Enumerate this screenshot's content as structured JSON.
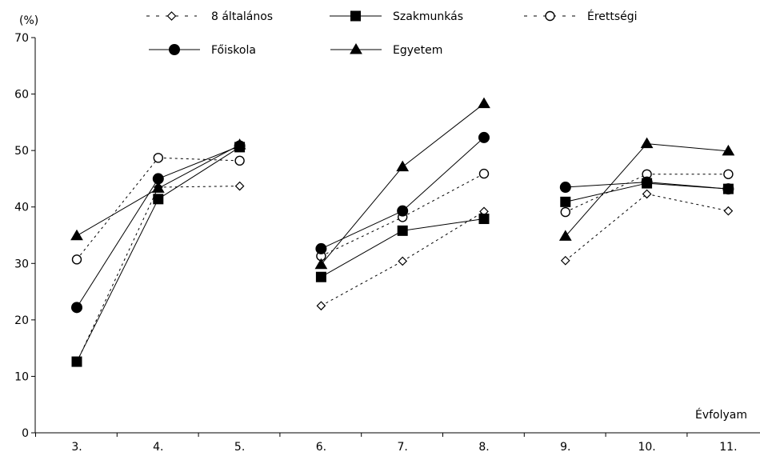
{
  "chart_data": {
    "type": "line",
    "title": "",
    "ylabel": "(%)",
    "xlabel": "Évfolyam",
    "ylim": [
      0,
      70
    ],
    "yticks": [
      0,
      10,
      20,
      30,
      40,
      50,
      60,
      70
    ],
    "categories": [
      "3.",
      "4.",
      "5.",
      "6.",
      "7.",
      "8.",
      "9.",
      "10.",
      "11."
    ],
    "groups": [
      [
        0,
        1,
        2
      ],
      [
        3,
        4,
        5
      ],
      [
        6,
        7,
        8
      ]
    ],
    "grid": false,
    "legend_position": "top",
    "series": [
      {
        "name": "8 általános",
        "marker": "diamond-open",
        "line": "dashed",
        "values": [
          12.5,
          43.5,
          43.7,
          22.5,
          30.4,
          39.2,
          30.5,
          42.3,
          39.3
        ]
      },
      {
        "name": "Szakmunkás",
        "marker": "square-filled",
        "line": "solid",
        "values": [
          12.6,
          41.4,
          50.6,
          27.6,
          35.8,
          37.9,
          40.9,
          44.2,
          43.2
        ]
      },
      {
        "name": "Érettségi",
        "marker": "circle-open",
        "line": "dashed",
        "values": [
          30.7,
          48.7,
          48.2,
          31.3,
          38.2,
          45.9,
          39.1,
          45.8,
          45.8
        ]
      },
      {
        "name": "Főiskola",
        "marker": "circle-filled",
        "line": "solid",
        "values": [
          22.2,
          45.0,
          50.8,
          32.6,
          39.3,
          52.3,
          43.5,
          44.4,
          43.2
        ]
      },
      {
        "name": "Egyetem",
        "marker": "triangle-filled",
        "line": "solid",
        "values": [
          34.9,
          43.3,
          51.0,
          29.8,
          47.1,
          58.3,
          34.8,
          51.2,
          49.9
        ]
      }
    ]
  }
}
